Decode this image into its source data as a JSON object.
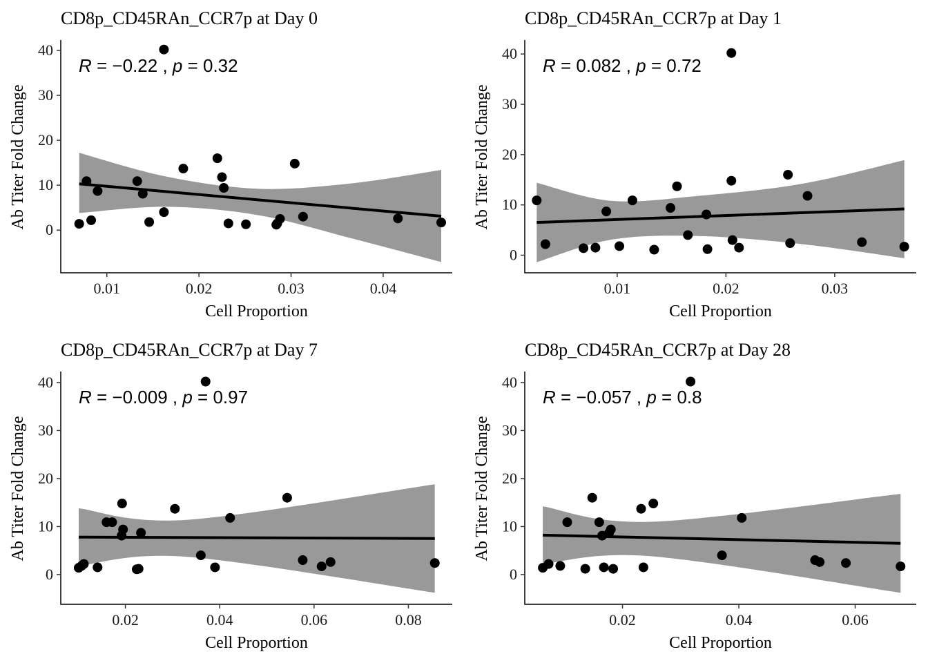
{
  "figure": {
    "background": "#ffffff",
    "point_color": "#000000",
    "line_color": "#000000",
    "band_color": "#999999"
  },
  "chart_data": [
    {
      "type": "scatter",
      "title": "CD8p_CD45RAn_CCR7p at Day 0",
      "xlabel": "Cell Proportion",
      "ylabel": "Ab Titer Fold Change",
      "stat": {
        "R": "−0.22",
        "p": "0.32"
      },
      "xlim": [
        0.005,
        0.0475
      ],
      "ylim": [
        -9.5,
        42
      ],
      "xticks": [
        0.01,
        0.02,
        0.03,
        0.04
      ],
      "xtick_labels": [
        "0.01",
        "0.02",
        "0.03",
        "0.04"
      ],
      "yticks": [
        0,
        10,
        20,
        30,
        40
      ],
      "ytick_labels": [
        "0",
        "10",
        "20",
        "30",
        "40"
      ],
      "points": [
        [
          0.007,
          1.4
        ],
        [
          0.0078,
          10.9
        ],
        [
          0.0083,
          2.2
        ],
        [
          0.009,
          8.7
        ],
        [
          0.0133,
          10.9
        ],
        [
          0.0139,
          8.1
        ],
        [
          0.0146,
          1.8
        ],
        [
          0.0162,
          40.2
        ],
        [
          0.0162,
          4.0
        ],
        [
          0.0183,
          13.7
        ],
        [
          0.022,
          16.0
        ],
        [
          0.0225,
          11.8
        ],
        [
          0.0227,
          9.4
        ],
        [
          0.0232,
          1.5
        ],
        [
          0.0251,
          1.3
        ],
        [
          0.0284,
          1.2
        ],
        [
          0.0285,
          1.5
        ],
        [
          0.0288,
          2.5
        ],
        [
          0.0304,
          14.8
        ],
        [
          0.0313,
          3.0
        ],
        [
          0.0416,
          2.6
        ],
        [
          0.0463,
          1.7
        ]
      ],
      "fit": {
        "x": [
          0.007,
          0.0463
        ],
        "y": [
          10.3,
          3.1
        ]
      },
      "band": {
        "x": [
          0.007,
          0.0165,
          0.0265,
          0.0365,
          0.0463
        ],
        "lower": [
          3.8,
          5.2,
          3.3,
          -1.8,
          -7.1
        ],
        "upper": [
          17.2,
          11.9,
          9.2,
          10.4,
          13.4
        ]
      }
    },
    {
      "type": "scatter",
      "title": "CD8p_CD45RAn_CCR7p at Day 1",
      "xlabel": "Cell Proportion",
      "ylabel": "Ab Titer Fold Change",
      "stat": {
        "R": "0.082",
        "p": "0.72"
      },
      "xlim": [
        0.0015,
        0.0375
      ],
      "ylim": [
        -3.5,
        42.5
      ],
      "xticks": [
        0.01,
        0.02,
        0.03
      ],
      "xtick_labels": [
        "0.01",
        "0.02",
        "0.03"
      ],
      "yticks": [
        0,
        10,
        20,
        30,
        40
      ],
      "ytick_labels": [
        "0",
        "10",
        "20",
        "30",
        "40"
      ],
      "points": [
        [
          0.0026,
          10.9
        ],
        [
          0.0034,
          2.2
        ],
        [
          0.0069,
          1.4
        ],
        [
          0.008,
          1.5
        ],
        [
          0.009,
          8.7
        ],
        [
          0.0102,
          1.8
        ],
        [
          0.0114,
          10.9
        ],
        [
          0.0134,
          1.1
        ],
        [
          0.0149,
          9.4
        ],
        [
          0.0155,
          13.7
        ],
        [
          0.0165,
          4.0
        ],
        [
          0.0182,
          8.1
        ],
        [
          0.0183,
          1.2
        ],
        [
          0.0205,
          14.8
        ],
        [
          0.0205,
          40.2
        ],
        [
          0.0206,
          3.0
        ],
        [
          0.0212,
          1.5
        ],
        [
          0.0257,
          16.0
        ],
        [
          0.0259,
          2.4
        ],
        [
          0.0275,
          11.8
        ],
        [
          0.0325,
          2.6
        ],
        [
          0.0364,
          1.7
        ]
      ],
      "fit": {
        "x": [
          0.0026,
          0.0364
        ],
        "y": [
          6.5,
          9.2
        ]
      },
      "band": {
        "x": [
          0.0026,
          0.0095,
          0.0175,
          0.027,
          0.0364
        ],
        "lower": [
          -1.4,
          3.1,
          3.8,
          2.2,
          -0.6
        ],
        "upper": [
          14.4,
          10.8,
          11.8,
          14.2,
          18.9
        ]
      }
    },
    {
      "type": "scatter",
      "title": "CD8p_CD45RAn_CCR7p at Day 7",
      "xlabel": "Cell Proportion",
      "ylabel": "Ab Titer Fold Change",
      "stat": {
        "R": "−0.009",
        "p": "0.97"
      },
      "xlim": [
        0.0063,
        0.0893
      ],
      "ylim": [
        -6.2,
        42
      ],
      "xticks": [
        0.02,
        0.04,
        0.06,
        0.08
      ],
      "xtick_labels": [
        "0.02",
        "0.04",
        "0.06",
        "0.08"
      ],
      "yticks": [
        0,
        10,
        20,
        30,
        40
      ],
      "ytick_labels": [
        "0",
        "10",
        "20",
        "30",
        "40"
      ],
      "points": [
        [
          0.0101,
          1.4
        ],
        [
          0.0107,
          1.8
        ],
        [
          0.0112,
          2.2
        ],
        [
          0.0141,
          1.5
        ],
        [
          0.016,
          10.9
        ],
        [
          0.0172,
          10.9
        ],
        [
          0.0192,
          8.1
        ],
        [
          0.0193,
          14.8
        ],
        [
          0.0195,
          9.4
        ],
        [
          0.0224,
          1.1
        ],
        [
          0.0228,
          1.2
        ],
        [
          0.0233,
          8.7
        ],
        [
          0.0305,
          13.7
        ],
        [
          0.036,
          4.0
        ],
        [
          0.037,
          40.2
        ],
        [
          0.039,
          1.5
        ],
        [
          0.0422,
          11.8
        ],
        [
          0.0543,
          16.0
        ],
        [
          0.0576,
          3.0
        ],
        [
          0.0616,
          1.7
        ],
        [
          0.0635,
          2.6
        ],
        [
          0.0856,
          2.4
        ]
      ],
      "fit": {
        "x": [
          0.0101,
          0.0856
        ],
        "y": [
          7.8,
          7.5
        ]
      },
      "band": {
        "x": [
          0.0101,
          0.033,
          0.0856
        ],
        "lower": [
          1.8,
          3.7,
          -3.8
        ],
        "upper": [
          13.8,
          11.4,
          18.8
        ]
      }
    },
    {
      "type": "scatter",
      "title": "CD8p_CD45RAn_CCR7p at Day 28",
      "xlabel": "Cell Proportion",
      "ylabel": "Ab Titer Fold Change",
      "stat": {
        "R": "−0.057",
        "p": "0.8"
      },
      "xlim": [
        0.0032,
        0.0705
      ],
      "ylim": [
        -6.2,
        42
      ],
      "xticks": [
        0.02,
        0.04,
        0.06
      ],
      "xtick_labels": [
        "0.02",
        "0.04",
        "0.06"
      ],
      "yticks": [
        0,
        10,
        20,
        30,
        40
      ],
      "ytick_labels": [
        "0",
        "10",
        "20",
        "30",
        "40"
      ],
      "points": [
        [
          0.0063,
          1.4
        ],
        [
          0.0073,
          2.2
        ],
        [
          0.0093,
          1.8
        ],
        [
          0.0105,
          10.9
        ],
        [
          0.0136,
          1.2
        ],
        [
          0.0148,
          16.0
        ],
        [
          0.016,
          10.9
        ],
        [
          0.0165,
          8.1
        ],
        [
          0.0168,
          1.5
        ],
        [
          0.0177,
          8.7
        ],
        [
          0.018,
          9.4
        ],
        [
          0.0184,
          1.2
        ],
        [
          0.0232,
          13.7
        ],
        [
          0.0236,
          1.5
        ],
        [
          0.0253,
          14.8
        ],
        [
          0.0317,
          40.2
        ],
        [
          0.0371,
          4.0
        ],
        [
          0.0405,
          11.8
        ],
        [
          0.0531,
          3.0
        ],
        [
          0.0539,
          2.6
        ],
        [
          0.0584,
          2.4
        ],
        [
          0.0678,
          1.7
        ]
      ],
      "fit": {
        "x": [
          0.0063,
          0.0678
        ],
        "y": [
          8.2,
          6.5
        ]
      },
      "band": {
        "x": [
          0.0063,
          0.025,
          0.0678
        ],
        "lower": [
          2.2,
          3.8,
          -3.8
        ],
        "upper": [
          14.2,
          11.0,
          16.8
        ]
      }
    }
  ]
}
